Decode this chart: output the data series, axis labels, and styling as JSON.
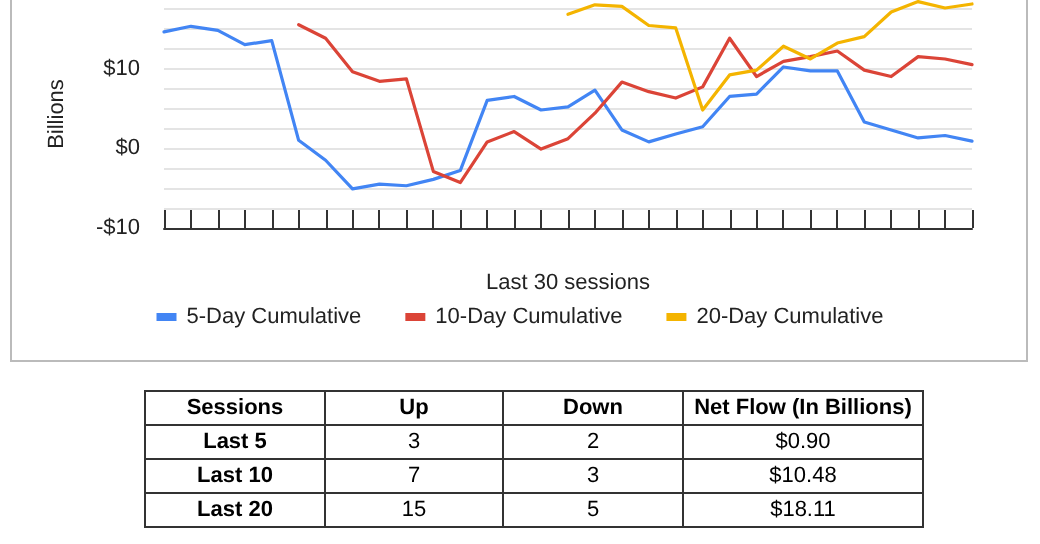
{
  "chart_data": [
    {
      "type": "line",
      "xlabel": "Last 30 sessions",
      "ylabel": "Billions",
      "categories": [
        null,
        null,
        null,
        null,
        null,
        null,
        null,
        null,
        null,
        null,
        null,
        null,
        null,
        null,
        null,
        null,
        null,
        null,
        null,
        null,
        null,
        null,
        null,
        null,
        null,
        null,
        null,
        null,
        null,
        null,
        null
      ],
      "series": [
        {
          "name": "5-Day Cumulative",
          "color": "#4285f4",
          "values": [
            14.6,
            15.3,
            14.8,
            13.0,
            13.5,
            1.0,
            -1.5,
            -5.1,
            -4.5,
            -4.7,
            -3.9,
            -2.8,
            6.0,
            6.5,
            4.8,
            5.2,
            7.3,
            2.3,
            0.8,
            1.8,
            2.7,
            6.5,
            6.8,
            10.2,
            9.7,
            9.7,
            3.3,
            2.3,
            1.3,
            1.6,
            0.9
          ]
        },
        {
          "name": "10-Day Cumulative",
          "color": "#db4437",
          "values": [
            null,
            null,
            null,
            null,
            null,
            15.5,
            13.8,
            9.6,
            8.4,
            8.7,
            -2.9,
            -4.3,
            0.8,
            2.1,
            -0.1,
            1.2,
            4.4,
            8.3,
            7.1,
            6.3,
            7.7,
            13.8,
            9.0,
            10.9,
            11.5,
            12.2,
            9.8,
            9.0,
            11.5,
            11.2,
            10.5
          ]
        },
        {
          "name": "20-Day Cumulative",
          "color": "#f4b400",
          "values": [
            null,
            null,
            null,
            null,
            null,
            null,
            null,
            null,
            null,
            null,
            null,
            null,
            null,
            null,
            null,
            16.8,
            18.0,
            17.8,
            15.4,
            15.1,
            4.8,
            9.2,
            9.8,
            12.8,
            11.2,
            13.2,
            14.0,
            17.1,
            18.4,
            17.6,
            18.1
          ]
        }
      ],
      "ylim": [
        -10,
        18.6
      ],
      "yticks": [
        {
          "value": -10,
          "label": "-$10"
        },
        {
          "value": -7.5,
          "label": null
        },
        {
          "value": -5,
          "label": null
        },
        {
          "value": -2.5,
          "label": null
        },
        {
          "value": 0,
          "label": "$0"
        },
        {
          "value": 2.5,
          "label": null
        },
        {
          "value": 5,
          "label": null
        },
        {
          "value": 7.5,
          "label": null
        },
        {
          "value": 10,
          "label": "$10"
        },
        {
          "value": 12.5,
          "label": null
        },
        {
          "value": 15,
          "label": null
        },
        {
          "value": 17.5,
          "label": null
        }
      ],
      "grid": "y",
      "legend": "bottom",
      "marker": "none",
      "line_style": "solid"
    },
    {
      "type": "other",
      "ylabel": "Sessions",
      "categories": [
        "Up",
        "Down",
        "Net Flow (In Billions)"
      ],
      "y_categories": [
        "Last 5",
        "Last 10",
        "Last 20"
      ],
      "cell_labels": [
        [
          "3",
          "2",
          "$0.90"
        ],
        [
          "7",
          "3",
          "$10.48"
        ],
        [
          "15",
          "5",
          "$18.11"
        ]
      ]
    }
  ]
}
